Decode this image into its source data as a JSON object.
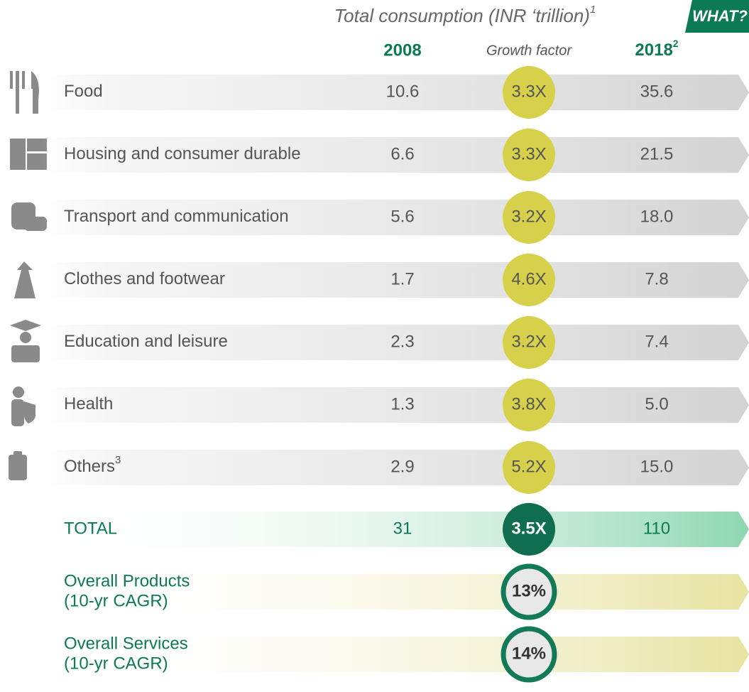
{
  "header": {
    "title": "Total consumption (INR ‘trillion)",
    "title_note": "1",
    "tag": "WHAT?",
    "col_2008": "2008",
    "col_growth": "Growth factor",
    "col_2018": "2018",
    "col_2018_note": "2"
  },
  "rows": [
    {
      "label": "Food",
      "v2008": "10.6",
      "growth": "3.3X",
      "v2018": "35.6"
    },
    {
      "label": "Housing and consumer durable",
      "v2008": "6.6",
      "growth": "3.3X",
      "v2018": "21.5"
    },
    {
      "label": "Transport and communication",
      "v2008": "5.6",
      "growth": "3.2X",
      "v2018": "18.0"
    },
    {
      "label": "Clothes and footwear",
      "v2008": "1.7",
      "growth": "4.6X",
      "v2018": "7.8"
    },
    {
      "label": "Education and leisure",
      "v2008": "2.3",
      "growth": "3.2X",
      "v2018": "7.4"
    },
    {
      "label": "Health",
      "v2008": "1.3",
      "growth": "3.8X",
      "v2018": "5.0"
    },
    {
      "label": "Others",
      "label_note": "3",
      "v2008": "2.9",
      "growth": "5.2X",
      "v2018": "15.0"
    }
  ],
  "total": {
    "label": "TOTAL",
    "v2008": "31",
    "growth": "3.5X",
    "v2018": "110"
  },
  "cagr": [
    {
      "label": [
        "Overall Products",
        "(10-yr CAGR)"
      ],
      "value": "13%"
    },
    {
      "label": [
        "Overall Services",
        "(10-yr CAGR)"
      ],
      "value": "14%"
    }
  ]
}
